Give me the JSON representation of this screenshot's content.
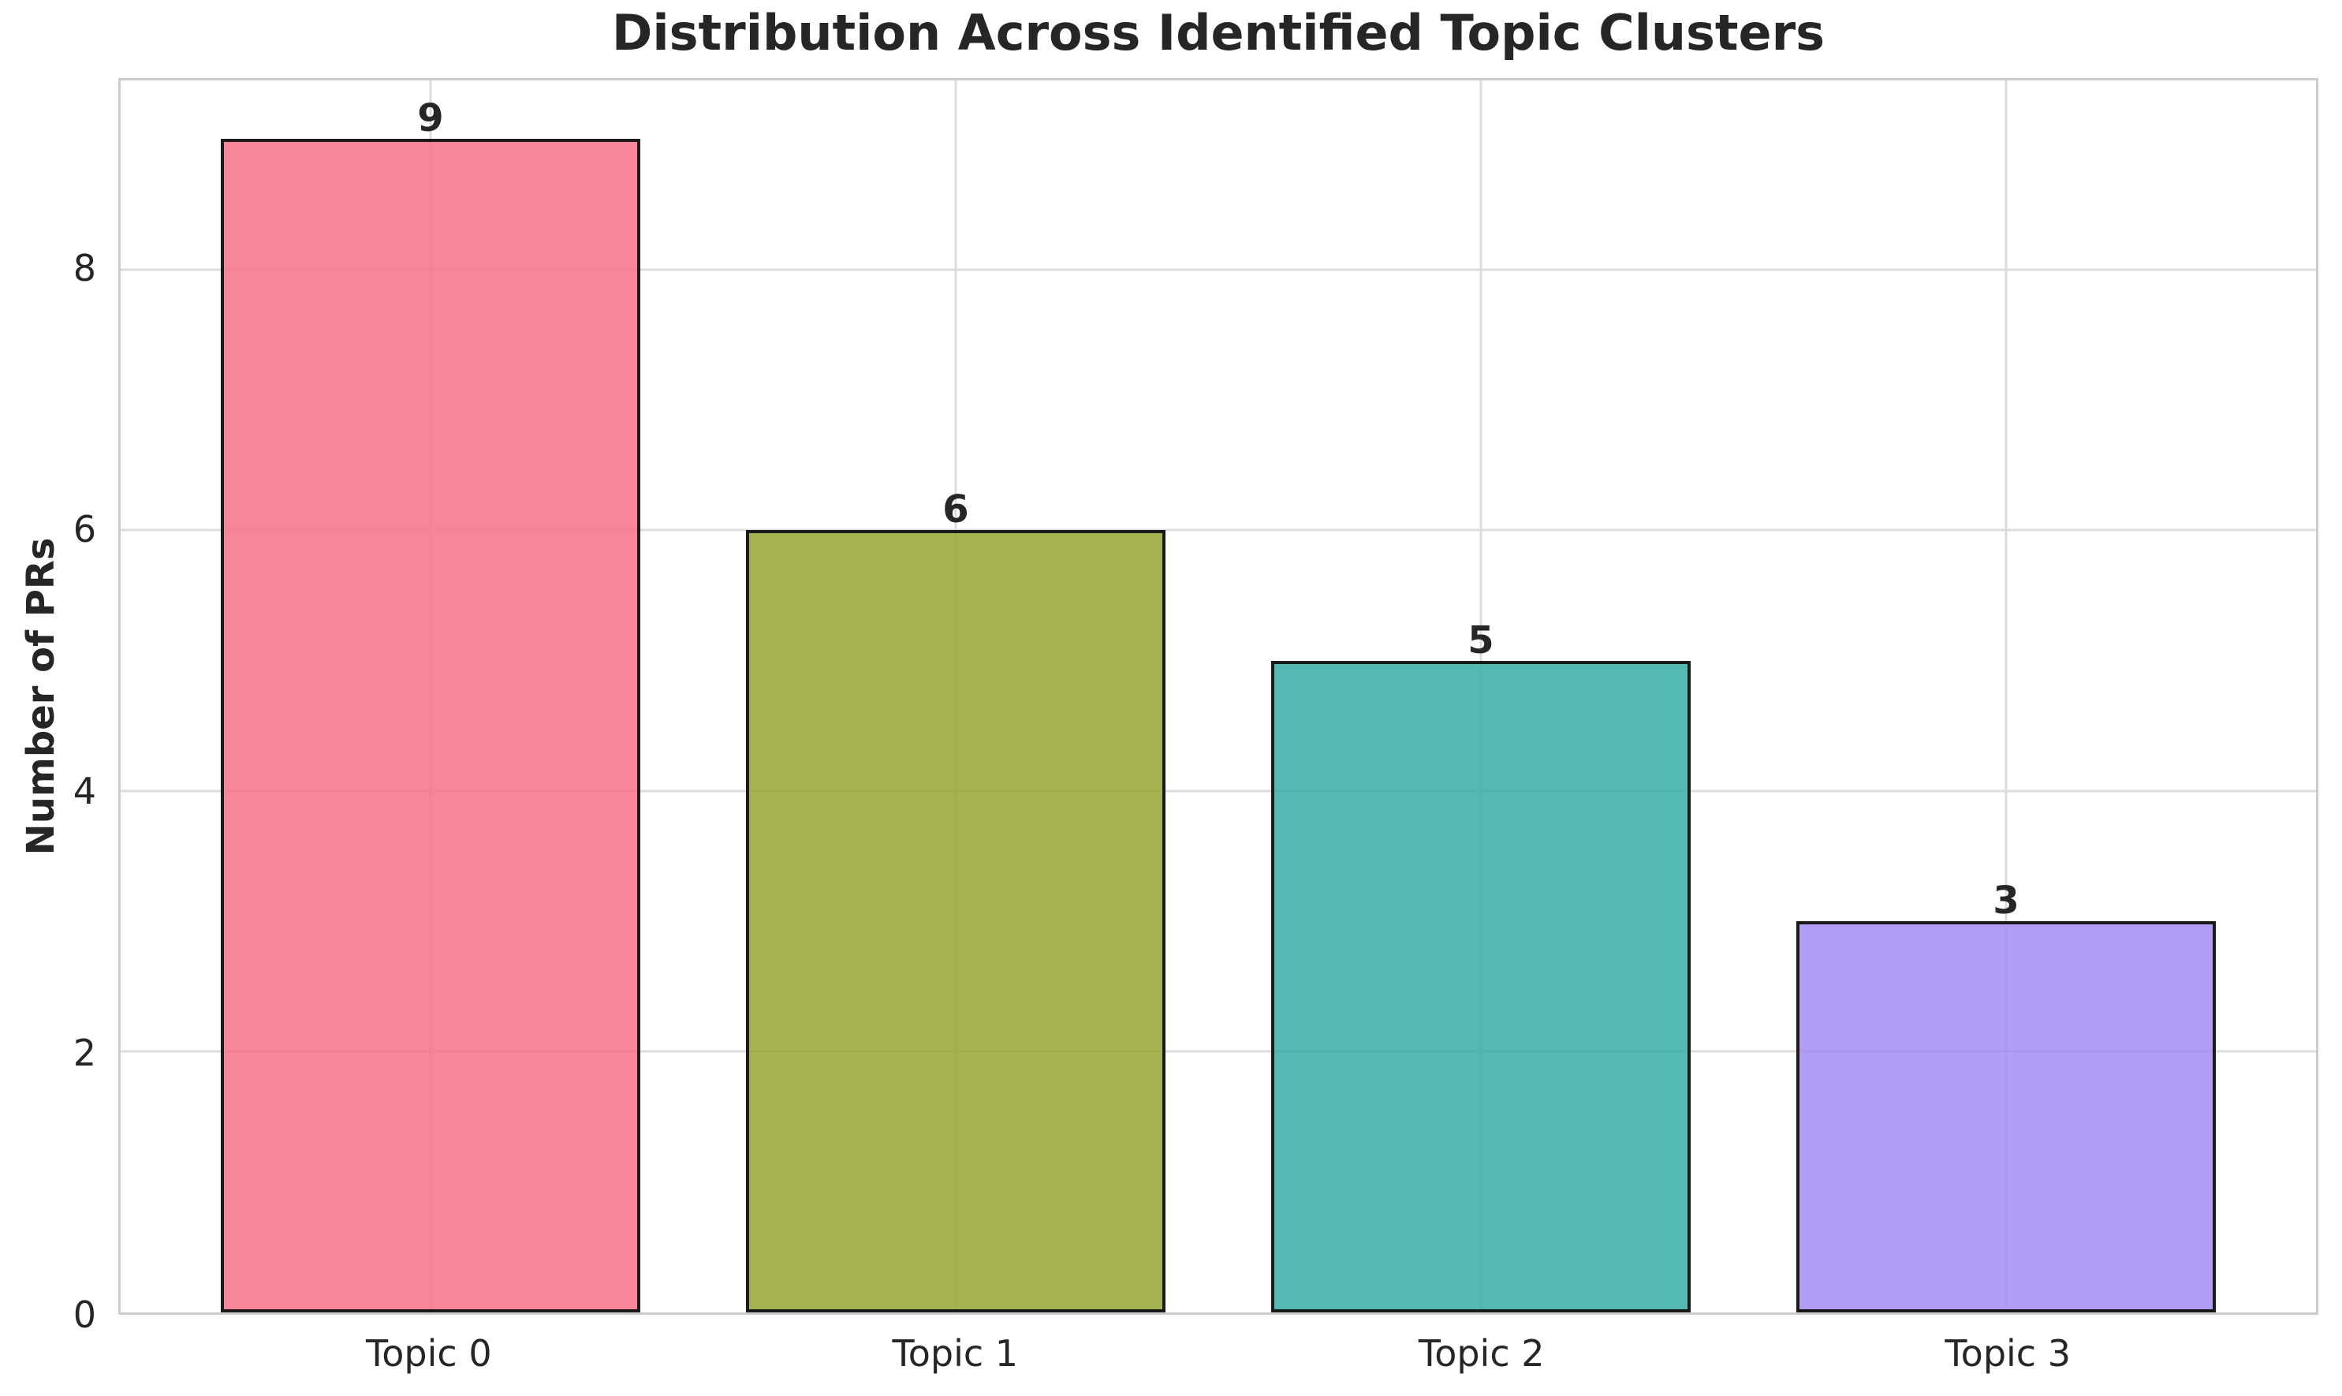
{
  "chart_data": {
    "type": "bar",
    "title": "Distribution Across Identified Topic Clusters",
    "xlabel": "",
    "ylabel": "Number of PRs",
    "categories": [
      "Topic 0",
      "Topic 1",
      "Topic 2",
      "Topic 3"
    ],
    "values": [
      9,
      6,
      5,
      3
    ],
    "bar_labels": [
      "9",
      "6",
      "5",
      "3"
    ],
    "yticks": [
      0,
      2,
      4,
      6,
      8
    ],
    "ylim": [
      0,
      9.45
    ],
    "xlim": [
      -0.59,
      3.59
    ],
    "bar_width": 0.8,
    "grid": true,
    "legend": false,
    "bar_colors": [
      "#f77189",
      "#97a431",
      "#36ada4",
      "#a48cf4"
    ],
    "bar_alpha": 0.85,
    "bar_edge_color": "#1a1a1a",
    "grid_color": "#dcdcdc",
    "spine_color": "#cccccc",
    "text_color": "#262626"
  }
}
